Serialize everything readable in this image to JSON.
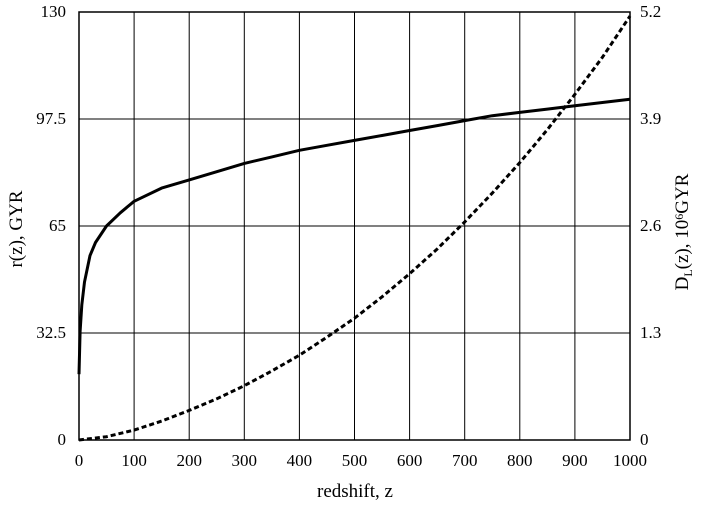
{
  "chart_data": {
    "type": "line",
    "title": "",
    "xlabel": "redshift, z",
    "ylabel_left": "r(z), GYR",
    "ylabel_right": {
      "main": "D",
      "subscript": "L",
      "rest_before_power": "(z), 10",
      "superscript": "6",
      "rest_after_power": "GYR"
    },
    "xlim": [
      0,
      1000
    ],
    "ylim_left": [
      0,
      130
    ],
    "ylim_right": [
      0,
      5.2
    ],
    "xticks": [
      {
        "value": 0,
        "label": "0"
      },
      {
        "value": 100,
        "label": "100"
      },
      {
        "value": 200,
        "label": "200"
      },
      {
        "value": 300,
        "label": "300"
      },
      {
        "value": 400,
        "label": "400"
      },
      {
        "value": 500,
        "label": "500"
      },
      {
        "value": 600,
        "label": "600"
      },
      {
        "value": 700,
        "label": "700"
      },
      {
        "value": 800,
        "label": "800"
      },
      {
        "value": 900,
        "label": "900"
      },
      {
        "value": 1000,
        "label": "1000"
      }
    ],
    "yticks_left": [
      {
        "value": 0,
        "label": "0"
      },
      {
        "value": 32.5,
        "label": "32.5"
      },
      {
        "value": 65,
        "label": "65"
      },
      {
        "value": 97.5,
        "label": "97.5"
      },
      {
        "value": 130,
        "label": "130"
      }
    ],
    "yticks_right": [
      {
        "value": 0,
        "label": "0"
      },
      {
        "value": 1.3,
        "label": "1.3"
      },
      {
        "value": 2.6,
        "label": "2.6"
      },
      {
        "value": 3.9,
        "label": "3.9"
      },
      {
        "value": 5.2,
        "label": "5.2"
      }
    ],
    "grid": true,
    "legend": "none",
    "series": [
      {
        "axis": "left",
        "style": "solid",
        "color": "#000000",
        "x": [
          0,
          2,
          5,
          10,
          20,
          30,
          50,
          75,
          100,
          150,
          200,
          250,
          300,
          350,
          400,
          450,
          500,
          550,
          600,
          650,
          700,
          750,
          800,
          850,
          900,
          950,
          1000
        ],
        "y": [
          20,
          33,
          41,
          48,
          56,
          60,
          65,
          69,
          72.5,
          76.5,
          79,
          81.5,
          84,
          86,
          88,
          89.5,
          91,
          92.5,
          94,
          95.5,
          97,
          98.5,
          99.5,
          100.5,
          101.5,
          102.5,
          103.5
        ]
      },
      {
        "axis": "right",
        "style": "dashed",
        "color": "#000000",
        "x": [
          0,
          50,
          100,
          150,
          200,
          250,
          300,
          350,
          400,
          450,
          500,
          550,
          600,
          650,
          700,
          750,
          800,
          850,
          900,
          950,
          1000
        ],
        "y": [
          0,
          0.04,
          0.12,
          0.23,
          0.36,
          0.5,
          0.66,
          0.84,
          1.03,
          1.25,
          1.48,
          1.74,
          2.02,
          2.32,
          2.65,
          3.0,
          3.37,
          3.77,
          4.2,
          4.65,
          5.15
        ]
      }
    ]
  }
}
